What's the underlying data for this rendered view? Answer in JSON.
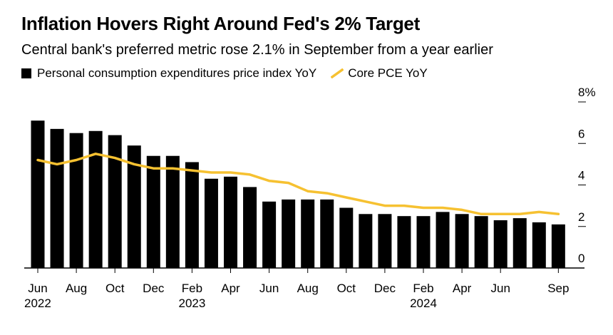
{
  "chart_data": {
    "type": "bar",
    "title": "Inflation Hovers Right Around Fed's 2% Target",
    "subtitle": "Central bank's preferred metric rose 2.1% in September from a year earlier",
    "xlabel": "",
    "ylabel": "",
    "ylim": [
      0,
      8
    ],
    "y_ticks": [
      "0",
      "2",
      "4",
      "6",
      "8%"
    ],
    "grid": false,
    "legend_position": "top-left",
    "categories": [
      "2022-06",
      "2022-07",
      "2022-08",
      "2022-09",
      "2022-10",
      "2022-11",
      "2022-12",
      "2023-01",
      "2023-02",
      "2023-03",
      "2023-04",
      "2023-05",
      "2023-06",
      "2023-07",
      "2023-08",
      "2023-09",
      "2023-10",
      "2023-11",
      "2023-12",
      "2024-01",
      "2024-02",
      "2024-03",
      "2024-04",
      "2024-05",
      "2024-06",
      "2024-07",
      "2024-08",
      "2024-09"
    ],
    "x_tick_labels": [
      {
        "index": 0,
        "month": "Jun",
        "year": "2022"
      },
      {
        "index": 2,
        "month": "Aug",
        "year": ""
      },
      {
        "index": 4,
        "month": "Oct",
        "year": ""
      },
      {
        "index": 6,
        "month": "Dec",
        "year": ""
      },
      {
        "index": 8,
        "month": "Feb",
        "year": "2023"
      },
      {
        "index": 10,
        "month": "Apr",
        "year": ""
      },
      {
        "index": 12,
        "month": "Jun",
        "year": ""
      },
      {
        "index": 14,
        "month": "Aug",
        "year": ""
      },
      {
        "index": 16,
        "month": "Oct",
        "year": ""
      },
      {
        "index": 18,
        "month": "Dec",
        "year": ""
      },
      {
        "index": 20,
        "month": "Feb",
        "year": "2024"
      },
      {
        "index": 22,
        "month": "Apr",
        "year": ""
      },
      {
        "index": 24,
        "month": "Jun",
        "year": ""
      },
      {
        "index": 27,
        "month": "Sep",
        "year": ""
      }
    ],
    "series": [
      {
        "name": "Personal consumption expenditures price index YoY",
        "type": "bar",
        "color": "#000000",
        "values": [
          7.1,
          6.7,
          6.5,
          6.6,
          6.4,
          5.9,
          5.4,
          5.4,
          5.1,
          4.3,
          4.4,
          3.9,
          3.2,
          3.3,
          3.3,
          3.3,
          2.9,
          2.6,
          2.6,
          2.5,
          2.5,
          2.7,
          2.6,
          2.5,
          2.3,
          2.4,
          2.2,
          2.1
        ]
      },
      {
        "name": "Core PCE YoY",
        "type": "line",
        "color": "#f6c131",
        "values": [
          5.2,
          5.0,
          5.2,
          5.5,
          5.3,
          5.0,
          4.8,
          4.8,
          4.7,
          4.6,
          4.6,
          4.5,
          4.2,
          4.1,
          3.7,
          3.6,
          3.4,
          3.2,
          3.0,
          3.0,
          2.9,
          2.9,
          2.8,
          2.6,
          2.6,
          2.6,
          2.7,
          2.6
        ]
      }
    ]
  }
}
